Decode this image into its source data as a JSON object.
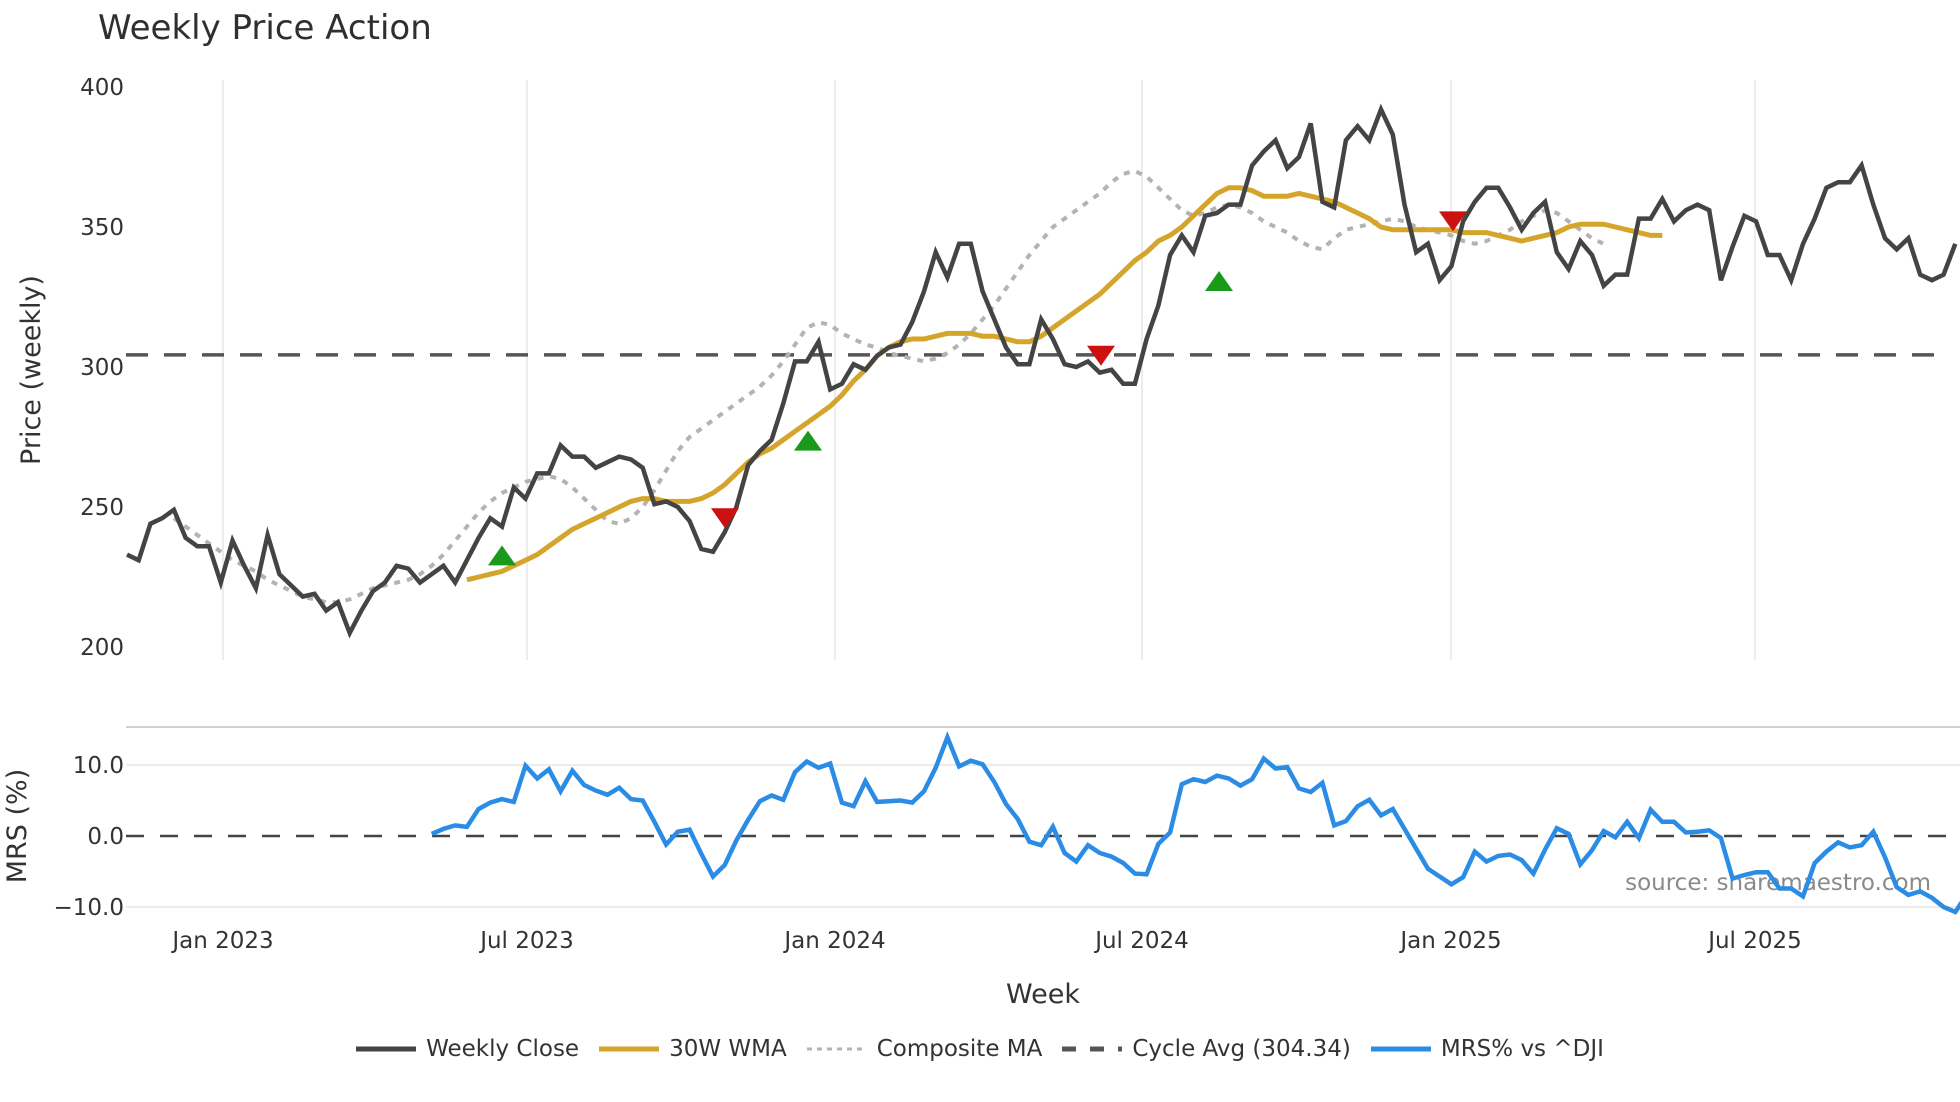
{
  "title": "Weekly Price Action",
  "source_text": "source: sharemaestro.com",
  "price_panel": {
    "ylabel": "Price (weekly)",
    "yticks": [
      200,
      250,
      300,
      350,
      400
    ],
    "ytick_labels": [
      "200",
      "250",
      "300",
      "350",
      "400"
    ],
    "ylim": [
      200,
      400
    ]
  },
  "mrs_panel": {
    "ylabel": "MRS (%)",
    "yticks": [
      -10,
      0,
      10
    ],
    "ytick_labels": [
      "−10.0",
      "0.0",
      "10.0"
    ]
  },
  "xaxis": {
    "title": "Week",
    "ticks": [
      "Jan 2023",
      "Jul 2023",
      "Jan 2024",
      "Jul 2024",
      "Jan 2025",
      "Jul 2025"
    ]
  },
  "legend": [
    {
      "label": "Weekly Close",
      "color": "#444444",
      "style": "solid"
    },
    {
      "label": "30W WMA",
      "color": "#d4a52a",
      "style": "solid"
    },
    {
      "label": "Composite MA",
      "color": "#b3b3b3",
      "style": "dotted"
    },
    {
      "label": "Cycle Avg (304.34)",
      "color": "#555555",
      "style": "dashed"
    },
    {
      "label": "MRS% vs ^DJI",
      "color": "#2b8ce6",
      "style": "solid"
    }
  ],
  "colors": {
    "close": "#444444",
    "wma": "#d4a52a",
    "composite": "#b3b3b3",
    "cycle": "#555555",
    "mrs": "#2b8ce6",
    "buy_marker": "#1a9a1a",
    "sell_marker": "#cc1111",
    "grid": "#ececec"
  },
  "chart_data": [
    {
      "type": "line",
      "title": "Weekly Price Action",
      "xlabel": "Week",
      "ylabel": "Price (weekly)",
      "ylim": [
        200,
        400
      ],
      "grid": true,
      "legend_position": "bottom",
      "x_tick_labels": [
        "Jan 2023",
        "Jul 2023",
        "Jan 2024",
        "Jul 2024",
        "Jan 2025",
        "Jul 2025"
      ],
      "x_start": "2022-11-07",
      "x_step": "1 week",
      "series": [
        {
          "name": "Weekly Close",
          "values": [
            233,
            231,
            244,
            246,
            249,
            239,
            236,
            236,
            223,
            238,
            229,
            221,
            240,
            226,
            222,
            218,
            219,
            213,
            216,
            205,
            213,
            220,
            223,
            229,
            228,
            223,
            226,
            229,
            223,
            231,
            239,
            246,
            243,
            257,
            253,
            262,
            262,
            272,
            268,
            268,
            264,
            266,
            268,
            267,
            264,
            251,
            252,
            250,
            245,
            235,
            234,
            241,
            250,
            265,
            270,
            274,
            287,
            302,
            302,
            309,
            292,
            294,
            301,
            299,
            304,
            307,
            308,
            316,
            327,
            341,
            332,
            344,
            344,
            327,
            317,
            307,
            301,
            301,
            317,
            310,
            301,
            300,
            302,
            298,
            299,
            294,
            294,
            310,
            322,
            340,
            347,
            341,
            354,
            355,
            358,
            358,
            372,
            377,
            381,
            371,
            375,
            387,
            359,
            357,
            381,
            386,
            381,
            392,
            383,
            358,
            341,
            344,
            331,
            336,
            352,
            359,
            364,
            364,
            357,
            349,
            355,
            359,
            341,
            335,
            345,
            340,
            329,
            333,
            333,
            353,
            353,
            360,
            352,
            356,
            358,
            356,
            331,
            343,
            354,
            352,
            340,
            340,
            331,
            344,
            353,
            364,
            366,
            366,
            372,
            358,
            346,
            342,
            346,
            333,
            331,
            333,
            344
          ]
        },
        {
          "name": "30W WMA",
          "start_index": 29,
          "values": [
            224,
            225,
            226,
            227,
            229,
            231,
            233,
            236,
            239,
            242,
            244,
            246,
            248,
            250,
            252,
            253,
            253,
            252,
            252,
            252,
            253,
            255,
            258,
            262,
            266,
            269,
            271,
            274,
            277,
            280,
            283,
            286,
            290,
            295,
            299,
            304,
            307,
            309,
            310,
            310,
            311,
            312,
            312,
            312,
            311,
            311,
            310,
            309,
            309,
            311,
            314,
            317,
            320,
            323,
            326,
            330,
            334,
            338,
            341,
            345,
            347,
            350,
            354,
            358,
            362,
            364,
            364,
            363,
            361,
            361,
            361,
            362,
            361,
            360,
            359,
            357,
            355,
            353,
            350,
            349,
            349,
            349,
            349,
            349,
            349,
            348,
            348,
            348,
            347,
            346,
            345,
            346,
            347,
            348,
            350,
            351,
            351,
            351,
            350,
            349,
            348,
            347,
            347
          ]
        },
        {
          "name": "Composite MA",
          "start_index": 4,
          "values": [
            246,
            243,
            240,
            237,
            234,
            231,
            229,
            227,
            224,
            222,
            220,
            218,
            217,
            216,
            216,
            217,
            219,
            221,
            222,
            223,
            224,
            226,
            229,
            233,
            238,
            243,
            248,
            252,
            255,
            257,
            259,
            260,
            261,
            260,
            257,
            253,
            249,
            245,
            244,
            246,
            250,
            256,
            263,
            270,
            275,
            278,
            281,
            284,
            287,
            290,
            293,
            297,
            302,
            308,
            314,
            316,
            315,
            312,
            310,
            308,
            307,
            305,
            304,
            303,
            302,
            303,
            305,
            308,
            312,
            317,
            322,
            328,
            334,
            340,
            345,
            350,
            353,
            356,
            359,
            362,
            366,
            369,
            370,
            368,
            364,
            360,
            356,
            354,
            355,
            357,
            358,
            357,
            355,
            352,
            350,
            348,
            345,
            343,
            342,
            346,
            349,
            350,
            351,
            352,
            353,
            352,
            350,
            349,
            348,
            347,
            345,
            344,
            345,
            347,
            349,
            352,
            354,
            356,
            355,
            352,
            349,
            346,
            344
          ]
        },
        {
          "name": "Cycle Avg (304.34)",
          "values": [
            304.34
          ]
        }
      ],
      "markers": [
        {
          "type": "buy",
          "shape": "triangle-up",
          "color": "#1a9a1a",
          "approx_date": "Jun 2023",
          "price": 232
        },
        {
          "type": "sell",
          "shape": "triangle-down",
          "color": "#cc1111",
          "approx_date": "Oct 2023",
          "price": 246
        },
        {
          "type": "buy",
          "shape": "triangle-up",
          "color": "#1a9a1a",
          "approx_date": "Dec 2023",
          "price": 273
        },
        {
          "type": "sell",
          "shape": "triangle-down",
          "color": "#cc1111",
          "approx_date": "Jun 2024",
          "price": 304
        },
        {
          "type": "buy",
          "shape": "triangle-up",
          "color": "#1a9a1a",
          "approx_date": "Sep 2024",
          "price": 330
        },
        {
          "type": "sell",
          "shape": "triangle-down",
          "color": "#cc1111",
          "approx_date": "Jan 2025",
          "price": 352
        }
      ]
    },
    {
      "type": "line",
      "title": "",
      "xlabel": "Week",
      "ylabel": "MRS (%)",
      "ylim": [
        -11,
        15
      ],
      "grid": true,
      "reference_line": 0.0,
      "series": [
        {
          "name": "MRS% vs ^DJI",
          "start_index": 26,
          "values": [
            0.3,
            1.0,
            1.5,
            1.3,
            3.8,
            4.7,
            5.2,
            4.8,
            9.9,
            8.1,
            9.4,
            6.3,
            9.2,
            7.2,
            6.4,
            5.8,
            6.8,
            5.2,
            5.0,
            2.0,
            -1.2,
            0.6,
            0.9,
            -2.5,
            -5.7,
            -4.1,
            -0.6,
            2.3,
            4.9,
            5.7,
            5.1,
            9.0,
            10.5,
            9.6,
            10.2,
            4.7,
            4.2,
            7.7,
            4.8,
            4.9,
            5.0,
            4.7,
            6.3,
            9.6,
            13.9,
            9.8,
            10.6,
            10.1,
            7.6,
            4.5,
            2.4,
            -0.8,
            -1.3,
            1.3,
            -2.4,
            -3.6,
            -1.3,
            -2.4,
            -2.9,
            -3.8,
            -5.3,
            -5.4,
            -1.1,
            0.5,
            7.3,
            8.0,
            7.6,
            8.5,
            8.1,
            7.1,
            8.0,
            10.9,
            9.5,
            9.7,
            6.7,
            6.2,
            7.5,
            1.5,
            2.1,
            4.2,
            5.1,
            2.9,
            3.8,
            1.0,
            -1.8,
            -4.6,
            -5.7,
            -6.8,
            -5.8,
            -2.2,
            -3.6,
            -2.8,
            -2.6,
            -3.4,
            -5.3,
            -1.9,
            1.1,
            0.3,
            -4.0,
            -2.0,
            0.7,
            -0.2,
            2.0,
            -0.3,
            3.7,
            2.0,
            2.0,
            0.5,
            0.6,
            0.8,
            -0.3,
            -6.0,
            -5.5,
            -5.1,
            -5.1,
            -7.4,
            -7.4,
            -8.5,
            -3.8,
            -2.2,
            -0.9,
            -1.6,
            -1.3,
            0.6,
            -3.0,
            -7.2,
            -8.3,
            -7.8,
            -8.7,
            -10.0,
            -10.7,
            -8.2
          ]
        }
      ]
    }
  ]
}
